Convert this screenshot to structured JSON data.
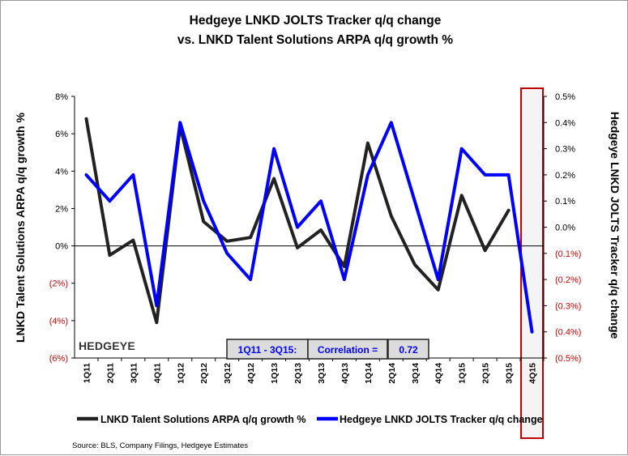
{
  "chart_data": {
    "type": "line",
    "title": [
      "Hedgeye LNKD JOLTS Tracker q/q change",
      "vs. LNKD Talent Solutions ARPA q/q growth %"
    ],
    "categories": [
      "1Q11",
      "2Q11",
      "3Q11",
      "4Q11",
      "1Q12",
      "2Q12",
      "3Q12",
      "4Q12",
      "1Q13",
      "2Q13",
      "3Q13",
      "4Q13",
      "1Q14",
      "2Q14",
      "3Q14",
      "4Q14",
      "1Q15",
      "2Q15",
      "3Q15",
      "4Q15"
    ],
    "series": [
      {
        "name": "LNKD Talent Solutions ARPA q/q growth %",
        "axis": "left",
        "color": "#222222",
        "values": [
          6.8,
          -0.5,
          0.3,
          -4.1,
          6.4,
          1.3,
          0.25,
          0.45,
          3.6,
          -0.1,
          0.85,
          -1.1,
          5.5,
          1.6,
          -1.0,
          -2.35,
          2.7,
          -0.25,
          1.9,
          null
        ]
      },
      {
        "name": "Hedgeye LNKD JOLTS Tracker q/q change",
        "axis": "right",
        "color": "#0000ff",
        "values": [
          0.2,
          0.1,
          0.2,
          -0.3,
          0.4,
          0.1,
          -0.1,
          -0.2,
          0.3,
          0.0,
          0.1,
          -0.2,
          0.2,
          0.4,
          0.1,
          -0.2,
          0.3,
          0.2,
          0.2,
          -0.4
        ]
      }
    ],
    "y_left": {
      "label": "LNKD Talent Solutions ARPA q/q growth %",
      "range": [
        -6,
        8
      ],
      "ticks": [
        8,
        6,
        4,
        2,
        0,
        -2,
        -4,
        -6
      ],
      "tick_labels": [
        "8%",
        "6%",
        "4%",
        "2%",
        "0%",
        "(2%)",
        "(4%)",
        "(6%)"
      ]
    },
    "y_right": {
      "label": "Hedgeye LNKD JOLTS Tracker q/q change",
      "range": [
        -0.5,
        0.5
      ],
      "ticks": [
        0.5,
        0.4,
        0.3,
        0.2,
        0.1,
        0.0,
        -0.1,
        -0.2,
        -0.3,
        -0.4,
        -0.5
      ],
      "tick_labels": [
        "0.5%",
        "0.4%",
        "0.3%",
        "0.2%",
        "0.1%",
        "0.0%",
        "(0.1%)",
        "(0.2%)",
        "(0.3%)",
        "(0.4%)",
        "(0.5%)"
      ],
      "negative_color": "#e00000"
    },
    "highlight_category": "4Q15",
    "highlight_color": "#c00000",
    "annotation": {
      "period": "1Q11 - 3Q15:",
      "label": "Correlation =",
      "value": "0.72"
    },
    "brand": "HEDGEYE",
    "source": "Source: BLS, Company Filings,  Hedgeye Estimates",
    "legend_position": "bottom"
  }
}
